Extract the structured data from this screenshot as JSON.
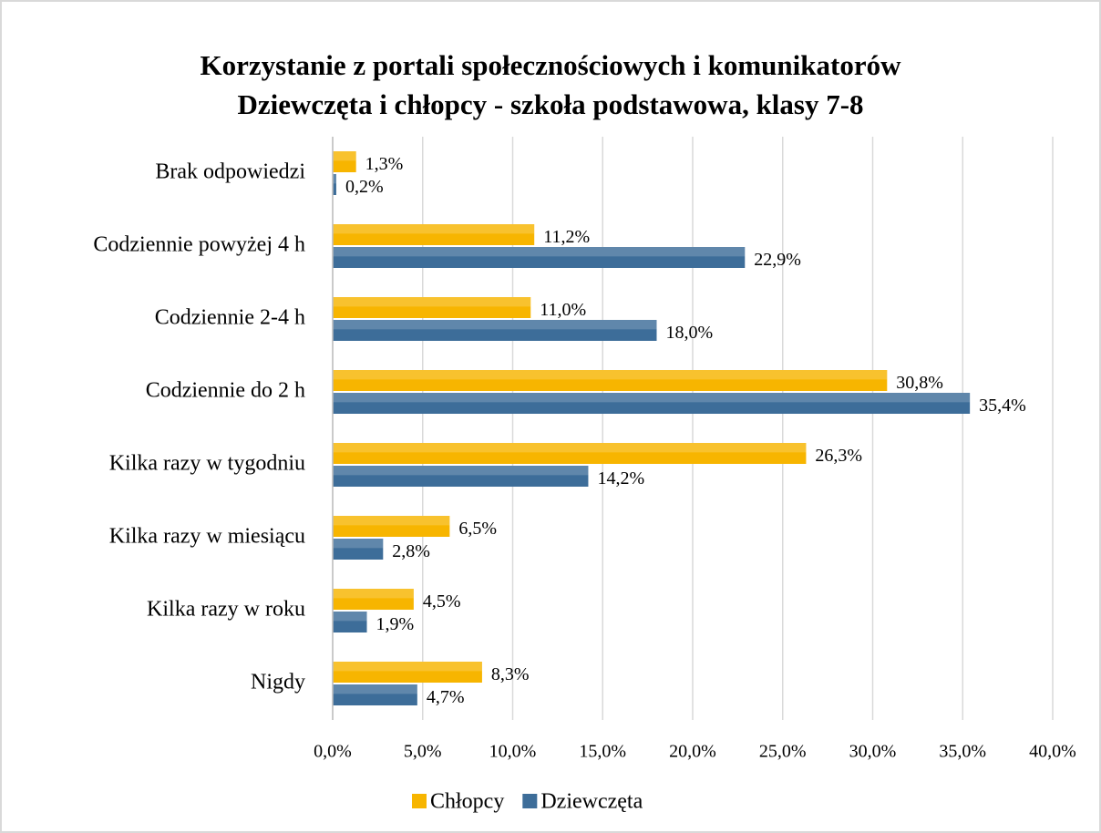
{
  "chart_data": {
    "type": "hbar",
    "title": "Korzystanie z portali społecznościowych i komunikatorów",
    "subtitle": "Dziewczęta i chłopcy - szkoła podstawowa, klasy 7-8",
    "categories": [
      "Brak odpowiedzi",
      "Codziennie powyżej 4 h",
      "Codziennie 2-4 h",
      "Codziennie do 2 h",
      "Kilka razy w tygodniu",
      "Kilka razy w miesiącu",
      "Kilka razy w roku",
      "Nigdy"
    ],
    "series": [
      {
        "name": "Chłopcy",
        "color": "#f7b500",
        "values": [
          1.3,
          11.2,
          11.0,
          30.8,
          26.3,
          6.5,
          4.5,
          8.3
        ],
        "value_labels": [
          "1,3%",
          "11,2%",
          "11,0%",
          "30,8%",
          "26,3%",
          "6,5%",
          "4,5%",
          "8,3%"
        ]
      },
      {
        "name": "Dziewczęta",
        "color": "#3d6d99",
        "values": [
          0.2,
          22.9,
          18.0,
          35.4,
          14.2,
          2.8,
          1.9,
          4.7
        ],
        "value_labels": [
          "0,2%",
          "22,9%",
          "18,0%",
          "35,4%",
          "14,2%",
          "2,8%",
          "1,9%",
          "4,7%"
        ]
      }
    ],
    "xlim": [
      0,
      40
    ],
    "xticks": [
      {
        "value": 0,
        "label": "0,0%"
      },
      {
        "value": 5,
        "label": "5,0%"
      },
      {
        "value": 10,
        "label": "10,0%"
      },
      {
        "value": 15,
        "label": "15,0%"
      },
      {
        "value": 20,
        "label": "20,0%"
      },
      {
        "value": 25,
        "label": "25,0%"
      },
      {
        "value": 30,
        "label": "30,0%"
      },
      {
        "value": 35,
        "label": "35,0%"
      },
      {
        "value": 40,
        "label": "40,0%"
      }
    ],
    "grid": true,
    "legend": "bottom"
  }
}
